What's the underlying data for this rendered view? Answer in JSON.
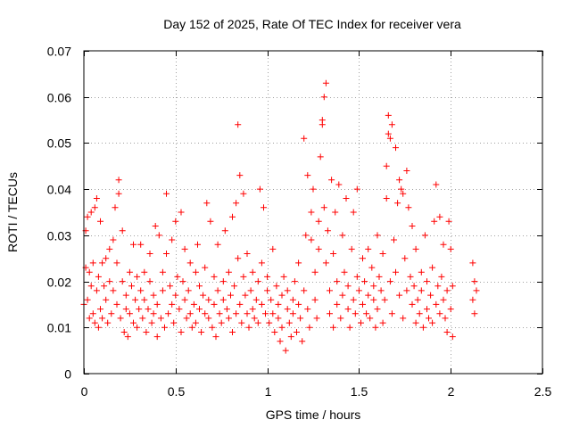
{
  "chart_data": {
    "type": "scatter",
    "title": "Day 152 of 2025, Rate Of TEC Index for receiver vera",
    "xlabel": "GPS time / hours",
    "ylabel": "ROTI / TECUs",
    "xlim": [
      0,
      2.5
    ],
    "ylim": [
      0,
      0.07
    ],
    "xticks": [
      0,
      0.5,
      1,
      1.5,
      2,
      2.5
    ],
    "xtick_labels": [
      "0",
      "0.5",
      "1",
      "1.5",
      "2",
      "2.5"
    ],
    "yticks": [
      0,
      0.01,
      0.02,
      0.03,
      0.04,
      0.05,
      0.06,
      0.07
    ],
    "ytick_labels": [
      "0",
      "0.01",
      "0.02",
      "0.03",
      "0.04",
      "0.05",
      "0.06",
      "0.07"
    ],
    "grid": true,
    "marker": "+",
    "color": "#ff0000",
    "series": [
      {
        "name": "ROTI",
        "points": [
          [
            0.0,
            0.015
          ],
          [
            0.01,
            0.023
          ],
          [
            0.01,
            0.031
          ],
          [
            0.02,
            0.034
          ],
          [
            0.02,
            0.016
          ],
          [
            0.03,
            0.012
          ],
          [
            0.03,
            0.022
          ],
          [
            0.04,
            0.035
          ],
          [
            0.04,
            0.019
          ],
          [
            0.05,
            0.013
          ],
          [
            0.05,
            0.024
          ],
          [
            0.06,
            0.036
          ],
          [
            0.06,
            0.011
          ],
          [
            0.07,
            0.038
          ],
          [
            0.07,
            0.018
          ],
          [
            0.08,
            0.01
          ],
          [
            0.08,
            0.021
          ],
          [
            0.09,
            0.033
          ],
          [
            0.09,
            0.014
          ],
          [
            0.1,
            0.024
          ],
          [
            0.1,
            0.012
          ],
          [
            0.11,
            0.019
          ],
          [
            0.12,
            0.025
          ],
          [
            0.12,
            0.016
          ],
          [
            0.13,
            0.011
          ],
          [
            0.14,
            0.027
          ],
          [
            0.14,
            0.02
          ],
          [
            0.15,
            0.013
          ],
          [
            0.16,
            0.029
          ],
          [
            0.16,
            0.018
          ],
          [
            0.17,
            0.036
          ],
          [
            0.18,
            0.015
          ],
          [
            0.18,
            0.024
          ],
          [
            0.19,
            0.042
          ],
          [
            0.19,
            0.039
          ],
          [
            0.2,
            0.012
          ],
          [
            0.21,
            0.02
          ],
          [
            0.21,
            0.031
          ],
          [
            0.22,
            0.009
          ],
          [
            0.23,
            0.017
          ],
          [
            0.23,
            0.014
          ],
          [
            0.24,
            0.008
          ],
          [
            0.25,
            0.022
          ],
          [
            0.25,
            0.013
          ],
          [
            0.26,
            0.019
          ],
          [
            0.27,
            0.028
          ],
          [
            0.27,
            0.011
          ],
          [
            0.28,
            0.016
          ],
          [
            0.29,
            0.021
          ],
          [
            0.29,
            0.01
          ],
          [
            0.3,
            0.014
          ],
          [
            0.31,
            0.028
          ],
          [
            0.31,
            0.018
          ],
          [
            0.32,
            0.012
          ],
          [
            0.33,
            0.016
          ],
          [
            0.33,
            0.022
          ],
          [
            0.34,
            0.009
          ],
          [
            0.35,
            0.014
          ],
          [
            0.36,
            0.02
          ],
          [
            0.36,
            0.026
          ],
          [
            0.37,
            0.011
          ],
          [
            0.38,
            0.017
          ],
          [
            0.38,
            0.013
          ],
          [
            0.39,
            0.032
          ],
          [
            0.4,
            0.008
          ],
          [
            0.4,
            0.015
          ],
          [
            0.41,
            0.03
          ],
          [
            0.42,
            0.012
          ],
          [
            0.43,
            0.022
          ],
          [
            0.43,
            0.018
          ],
          [
            0.44,
            0.01
          ],
          [
            0.45,
            0.039
          ],
          [
            0.45,
            0.026
          ],
          [
            0.46,
            0.013
          ],
          [
            0.47,
            0.019
          ],
          [
            0.48,
            0.015
          ],
          [
            0.48,
            0.029
          ],
          [
            0.49,
            0.011
          ],
          [
            0.5,
            0.017
          ],
          [
            0.5,
            0.033
          ],
          [
            0.51,
            0.021
          ],
          [
            0.52,
            0.014
          ],
          [
            0.53,
            0.035
          ],
          [
            0.53,
            0.009
          ],
          [
            0.54,
            0.02
          ],
          [
            0.55,
            0.016
          ],
          [
            0.55,
            0.027
          ],
          [
            0.56,
            0.012
          ],
          [
            0.57,
            0.018
          ],
          [
            0.58,
            0.013
          ],
          [
            0.58,
            0.024
          ],
          [
            0.59,
            0.01
          ],
          [
            0.6,
            0.015
          ],
          [
            0.61,
            0.022
          ],
          [
            0.61,
            0.011
          ],
          [
            0.62,
            0.028
          ],
          [
            0.63,
            0.014
          ],
          [
            0.63,
            0.019
          ],
          [
            0.64,
            0.009
          ],
          [
            0.65,
            0.017
          ],
          [
            0.66,
            0.013
          ],
          [
            0.66,
            0.023
          ],
          [
            0.67,
            0.037
          ],
          [
            0.68,
            0.012
          ],
          [
            0.68,
            0.016
          ],
          [
            0.69,
            0.033
          ],
          [
            0.7,
            0.01
          ],
          [
            0.71,
            0.021
          ],
          [
            0.71,
            0.015
          ],
          [
            0.72,
            0.008
          ],
          [
            0.73,
            0.018
          ],
          [
            0.73,
            0.028
          ],
          [
            0.74,
            0.013
          ],
          [
            0.75,
            0.011
          ],
          [
            0.76,
            0.02
          ],
          [
            0.76,
            0.016
          ],
          [
            0.77,
            0.031
          ],
          [
            0.78,
            0.014
          ],
          [
            0.79,
            0.012
          ],
          [
            0.79,
            0.022
          ],
          [
            0.8,
            0.017
          ],
          [
            0.81,
            0.009
          ],
          [
            0.81,
            0.034
          ],
          [
            0.82,
            0.019
          ],
          [
            0.83,
            0.037
          ],
          [
            0.83,
            0.013
          ],
          [
            0.84,
            0.054
          ],
          [
            0.84,
            0.025
          ],
          [
            0.85,
            0.043
          ],
          [
            0.85,
            0.015
          ],
          [
            0.86,
            0.011
          ],
          [
            0.87,
            0.039
          ],
          [
            0.87,
            0.021
          ],
          [
            0.88,
            0.017
          ],
          [
            0.89,
            0.013
          ],
          [
            0.89,
            0.026
          ],
          [
            0.9,
            0.01
          ],
          [
            0.91,
            0.018
          ],
          [
            0.92,
            0.014
          ],
          [
            0.92,
            0.022
          ],
          [
            0.93,
            0.012
          ],
          [
            0.94,
            0.016
          ],
          [
            0.95,
            0.02
          ],
          [
            0.95,
            0.011
          ],
          [
            0.96,
            0.04
          ],
          [
            0.97,
            0.015
          ],
          [
            0.97,
            0.024
          ],
          [
            0.98,
            0.036
          ],
          [
            0.99,
            0.013
          ],
          [
            1.0,
            0.018
          ],
          [
            1.0,
            0.021
          ],
          [
            1.01,
            0.011
          ],
          [
            1.02,
            0.016
          ],
          [
            1.03,
            0.027
          ],
          [
            1.03,
            0.013
          ],
          [
            1.04,
            0.009
          ],
          [
            1.05,
            0.019
          ],
          [
            1.06,
            0.015
          ],
          [
            1.06,
            0.012
          ],
          [
            1.07,
            0.007
          ],
          [
            1.08,
            0.017
          ],
          [
            1.08,
            0.01
          ],
          [
            1.09,
            0.021
          ],
          [
            1.1,
            0.005
          ],
          [
            1.11,
            0.014
          ],
          [
            1.11,
            0.018
          ],
          [
            1.12,
            0.011
          ],
          [
            1.13,
            0.008
          ],
          [
            1.14,
            0.016
          ],
          [
            1.14,
            0.013
          ],
          [
            1.15,
            0.02
          ],
          [
            1.16,
            0.009
          ],
          [
            1.17,
            0.015
          ],
          [
            1.17,
            0.024
          ],
          [
            1.18,
            0.012
          ],
          [
            1.19,
            0.007
          ],
          [
            1.2,
            0.018
          ],
          [
            1.2,
            0.051
          ],
          [
            1.21,
            0.03
          ],
          [
            1.22,
            0.043
          ],
          [
            1.22,
            0.014
          ],
          [
            1.23,
            0.01
          ],
          [
            1.24,
            0.035
          ],
          [
            1.24,
            0.029
          ],
          [
            1.25,
            0.04
          ],
          [
            1.26,
            0.016
          ],
          [
            1.26,
            0.022
          ],
          [
            1.27,
            0.012
          ],
          [
            1.28,
            0.033
          ],
          [
            1.28,
            0.027
          ],
          [
            1.29,
            0.047
          ],
          [
            1.3,
            0.054
          ],
          [
            1.3,
            0.055
          ],
          [
            1.31,
            0.036
          ],
          [
            1.31,
            0.06
          ],
          [
            1.32,
            0.024
          ],
          [
            1.32,
            0.063
          ],
          [
            1.33,
            0.031
          ],
          [
            1.34,
            0.018
          ],
          [
            1.34,
            0.013
          ],
          [
            1.35,
            0.042
          ],
          [
            1.36,
            0.026
          ],
          [
            1.36,
            0.01
          ],
          [
            1.37,
            0.035
          ],
          [
            1.38,
            0.02
          ],
          [
            1.38,
            0.015
          ],
          [
            1.39,
            0.041
          ],
          [
            1.4,
            0.012
          ],
          [
            1.41,
            0.03
          ],
          [
            1.41,
            0.017
          ],
          [
            1.42,
            0.022
          ],
          [
            1.43,
            0.038
          ],
          [
            1.44,
            0.014
          ],
          [
            1.44,
            0.019
          ],
          [
            1.45,
            0.01
          ],
          [
            1.46,
            0.027
          ],
          [
            1.47,
            0.035
          ],
          [
            1.47,
            0.016
          ],
          [
            1.48,
            0.013
          ],
          [
            1.49,
            0.04
          ],
          [
            1.49,
            0.021
          ],
          [
            1.5,
            0.018
          ],
          [
            1.51,
            0.011
          ],
          [
            1.52,
            0.025
          ],
          [
            1.52,
            0.015
          ],
          [
            1.53,
            0.02
          ],
          [
            1.54,
            0.013
          ],
          [
            1.55,
            0.027
          ],
          [
            1.55,
            0.017
          ],
          [
            1.56,
            0.012
          ],
          [
            1.57,
            0.023
          ],
          [
            1.58,
            0.016
          ],
          [
            1.58,
            0.019
          ],
          [
            1.59,
            0.01
          ],
          [
            1.6,
            0.03
          ],
          [
            1.6,
            0.014
          ],
          [
            1.61,
            0.021
          ],
          [
            1.62,
            0.018
          ],
          [
            1.63,
            0.011
          ],
          [
            1.63,
            0.026
          ],
          [
            1.64,
            0.016
          ],
          [
            1.65,
            0.038
          ],
          [
            1.65,
            0.045
          ],
          [
            1.66,
            0.052
          ],
          [
            1.66,
            0.056
          ],
          [
            1.67,
            0.02
          ],
          [
            1.67,
            0.051
          ],
          [
            1.68,
            0.054
          ],
          [
            1.68,
            0.013
          ],
          [
            1.69,
            0.029
          ],
          [
            1.7,
            0.049
          ],
          [
            1.7,
            0.022
          ],
          [
            1.71,
            0.037
          ],
          [
            1.72,
            0.017
          ],
          [
            1.72,
            0.042
          ],
          [
            1.73,
            0.04
          ],
          [
            1.74,
            0.012
          ],
          [
            1.74,
            0.039
          ],
          [
            1.75,
            0.025
          ],
          [
            1.76,
            0.018
          ],
          [
            1.76,
            0.044
          ],
          [
            1.77,
            0.036
          ],
          [
            1.78,
            0.021
          ],
          [
            1.79,
            0.015
          ],
          [
            1.79,
            0.032
          ],
          [
            1.8,
            0.019
          ],
          [
            1.81,
            0.011
          ],
          [
            1.81,
            0.027
          ],
          [
            1.82,
            0.016
          ],
          [
            1.83,
            0.013
          ],
          [
            1.84,
            0.022
          ],
          [
            1.84,
            0.018
          ],
          [
            1.85,
            0.01
          ],
          [
            1.86,
            0.03
          ],
          [
            1.87,
            0.014
          ],
          [
            1.87,
            0.02
          ],
          [
            1.88,
            0.012
          ],
          [
            1.89,
            0.017
          ],
          [
            1.9,
            0.023
          ],
          [
            1.9,
            0.011
          ],
          [
            1.91,
            0.033
          ],
          [
            1.92,
            0.015
          ],
          [
            1.92,
            0.041
          ],
          [
            1.93,
            0.019
          ],
          [
            1.94,
            0.013
          ],
          [
            1.94,
            0.034
          ],
          [
            1.95,
            0.021
          ],
          [
            1.96,
            0.016
          ],
          [
            1.96,
            0.028
          ],
          [
            1.97,
            0.012
          ],
          [
            1.98,
            0.018
          ],
          [
            1.98,
            0.009
          ],
          [
            1.99,
            0.033
          ],
          [
            2.0,
            0.014
          ],
          [
            2.0,
            0.027
          ],
          [
            2.01,
            0.008
          ],
          [
            2.01,
            0.019
          ],
          [
            2.12,
            0.024
          ],
          [
            2.12,
            0.016
          ],
          [
            2.13,
            0.013
          ],
          [
            2.13,
            0.02
          ],
          [
            2.14,
            0.018
          ]
        ]
      }
    ]
  }
}
